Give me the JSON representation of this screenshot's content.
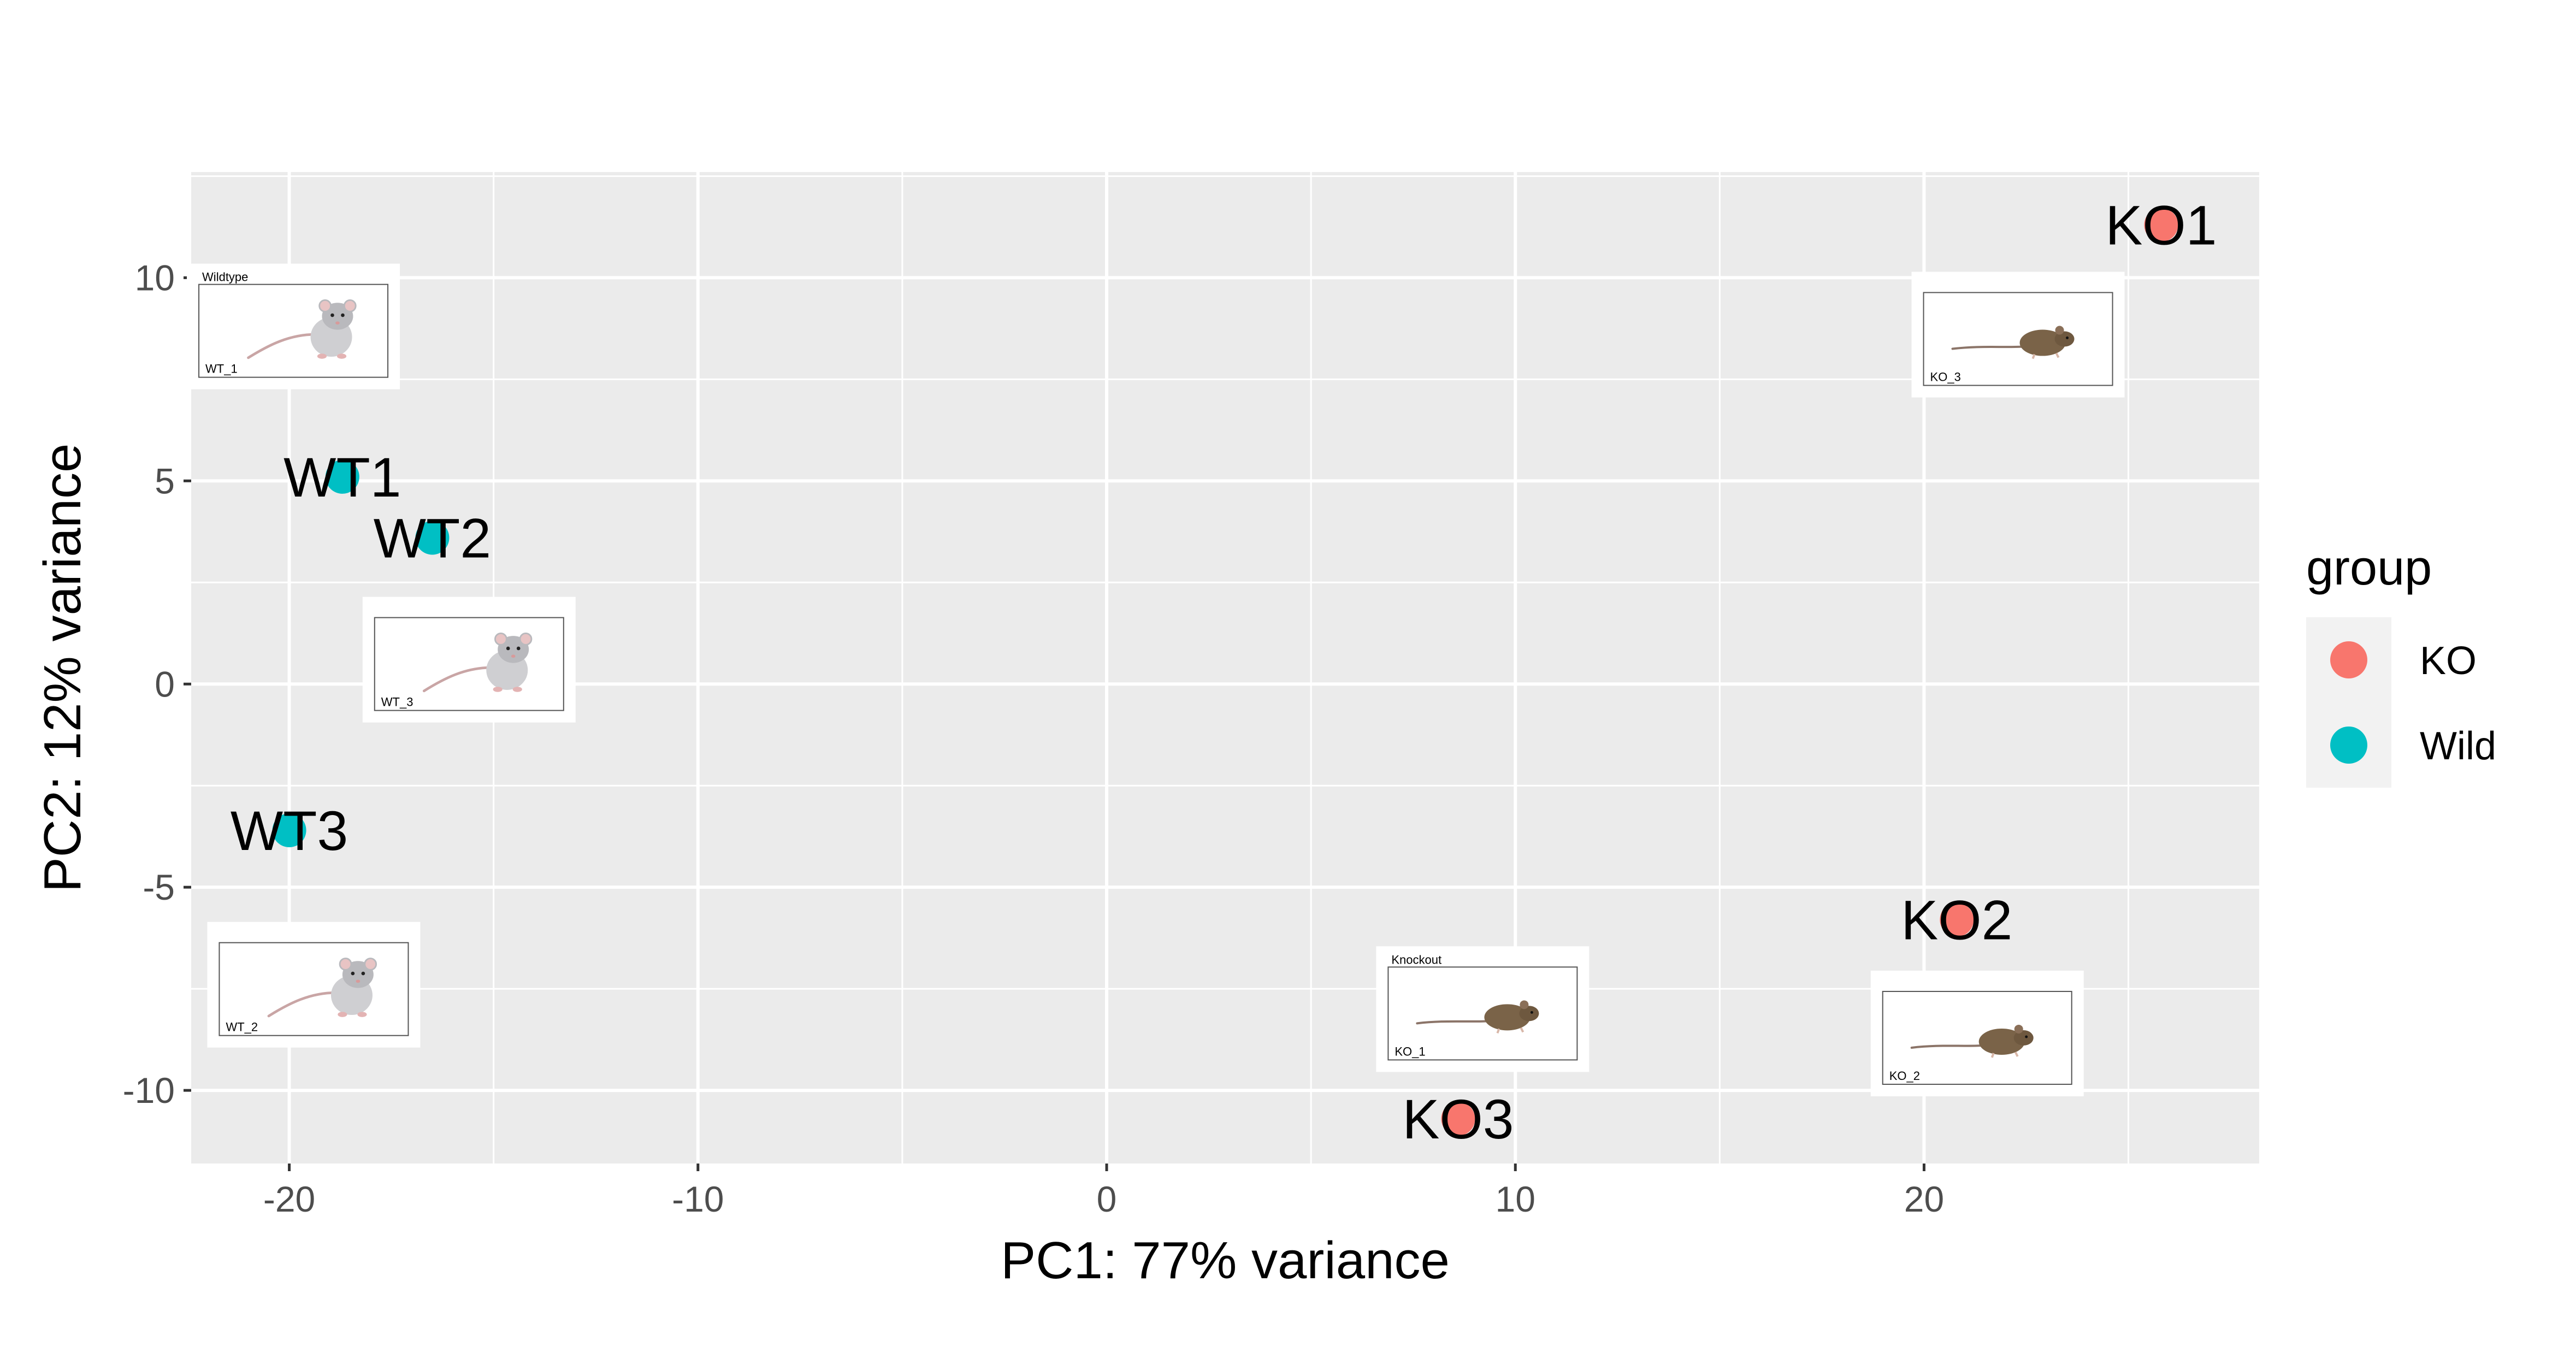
{
  "chart_data": {
    "type": "scatter",
    "title": "",
    "xlabel": "PC1: 77% variance",
    "ylabel": "PC2: 12% variance",
    "xlim": [
      -22.4,
      28.2
    ],
    "ylim": [
      -11.8,
      12.6
    ],
    "x_ticks": [
      -20,
      -10,
      0,
      10,
      20
    ],
    "y_ticks": [
      -10,
      -5,
      0,
      5,
      10
    ],
    "x_tick_labels": [
      "-20",
      "-10",
      "0",
      "10",
      "20"
    ],
    "y_tick_labels": [
      "-10",
      "-5",
      "0",
      "5",
      "10"
    ],
    "grid": true,
    "legend": {
      "title": "group",
      "position": "right",
      "entries": [
        {
          "label": "KO",
          "color": "#F8766D"
        },
        {
          "label": "Wild",
          "color": "#00BFC4"
        }
      ]
    },
    "series": [
      {
        "name": "KO",
        "color": "#F8766D",
        "points": [
          {
            "label": "KO1",
            "x": 25.8,
            "y": 11.3
          },
          {
            "label": "KO2",
            "x": 20.8,
            "y": -5.8
          },
          {
            "label": "KO3",
            "x": 8.6,
            "y": -10.7
          }
        ]
      },
      {
        "name": "Wild",
        "color": "#00BFC4",
        "points": [
          {
            "label": "WT1",
            "x": -18.7,
            "y": 5.1
          },
          {
            "label": "WT2",
            "x": -16.5,
            "y": 3.6
          },
          {
            "label": "WT3",
            "x": -20.0,
            "y": -3.6
          }
        ]
      }
    ],
    "image_insets": [
      {
        "caption_top": "Wildtype",
        "caption_bottom": "WT_1",
        "subject": "wildtype-rat",
        "x_center": -19.9,
        "y_center": 8.8
      },
      {
        "caption_top": "",
        "caption_bottom": "WT_3",
        "subject": "wildtype-rat",
        "x_center": -15.6,
        "y_center": 0.6
      },
      {
        "caption_top": "",
        "caption_bottom": "WT_2",
        "subject": "wildtype-rat",
        "x_center": -19.4,
        "y_center": -7.4
      },
      {
        "caption_top": "",
        "caption_bottom": "KO_3",
        "subject": "knockout-mouse",
        "x_center": 22.3,
        "y_center": 8.6
      },
      {
        "caption_top": "Knockout",
        "caption_bottom": "KO_1",
        "subject": "knockout-mouse",
        "x_center": 9.2,
        "y_center": -8.0
      },
      {
        "caption_top": "",
        "caption_bottom": "KO_2",
        "subject": "knockout-mouse",
        "x_center": 21.3,
        "y_center": -8.6
      }
    ]
  },
  "colors": {
    "panel_bg": "#EBEBEB",
    "grid_major": "#FFFFFF",
    "legend_key_bg": "#F2F2F2"
  }
}
